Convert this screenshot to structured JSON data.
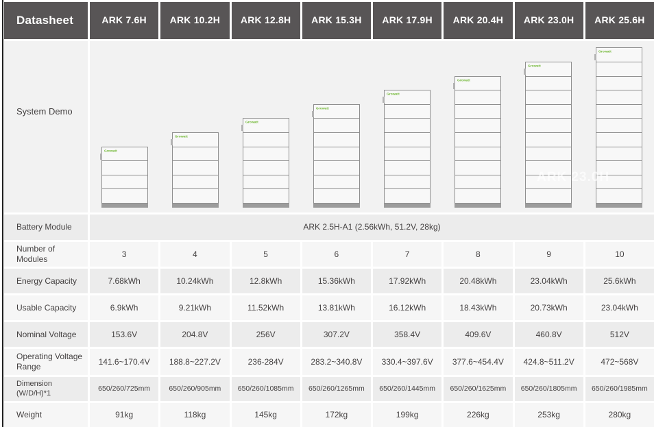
{
  "header": {
    "title": "Datasheet",
    "columns": [
      "ARK 7.6H",
      "ARK 10.2H",
      "ARK 12.8H",
      "ARK 15.3H",
      "ARK 17.9H",
      "ARK 20.4H",
      "ARK 23.0H",
      "ARK 25.6H"
    ]
  },
  "system_demo": {
    "label": "System Demo",
    "brand": "Growatt",
    "watermark": "ARK 23.0H",
    "stack_segments": [
      4,
      5,
      6,
      7,
      8,
      9,
      10,
      11
    ]
  },
  "battery_module": {
    "label": "Battery Module",
    "value": "ARK 2.5H-A1 (2.56kWh, 51.2V, 28kg)"
  },
  "rows": [
    {
      "label": "Number of Modules",
      "values": [
        "3",
        "4",
        "5",
        "6",
        "7",
        "8",
        "9",
        "10"
      ]
    },
    {
      "label": "Energy Capacity",
      "values": [
        "7.68kWh",
        "10.24kWh",
        "12.8kWh",
        "15.36kWh",
        "17.92kWh",
        "20.48kWh",
        "23.04kWh",
        "25.6kWh"
      ]
    },
    {
      "label": "Usable Capacity",
      "values": [
        "6.9kWh",
        "9.21kWh",
        "11.52kWh",
        "13.81kWh",
        "16.12kWh",
        "18.43kWh",
        "20.73kWh",
        "23.04kWh"
      ]
    },
    {
      "label": "Nominal Voltage",
      "values": [
        "153.6V",
        "204.8V",
        "256V",
        "307.2V",
        "358.4V",
        "409.6V",
        "460.8V",
        "512V"
      ]
    },
    {
      "label": "Operating Voltage Range",
      "values": [
        "141.6~170.4V",
        "188.8~227.2V",
        "236-284V",
        "283.2~340.8V",
        "330.4~397.6V",
        "377.6~454.4V",
        "424.8~511.2V",
        "472~568V"
      ]
    },
    {
      "label": "Dimension (W/D/H)*1",
      "values": [
        "650/260/725mm",
        "650/260/905mm",
        "650/260/1085mm",
        "650/260/1265mm",
        "650/260/1445mm",
        "650/260/1625mm",
        "650/260/1805mm",
        "650/260/1985mm"
      ]
    },
    {
      "label": "Weight",
      "values": [
        "91kg",
        "118kg",
        "145kg",
        "172kg",
        "199kg",
        "226kg",
        "253kg",
        "280kg"
      ]
    }
  ],
  "colors": {
    "header_bg": "#585556",
    "row_dark": "#ececec",
    "row_light": "#f6f6f6",
    "demo_bg": "#f2f2f2",
    "brand_green": "#6cb52d",
    "stack_base": "#9c9c9c"
  }
}
